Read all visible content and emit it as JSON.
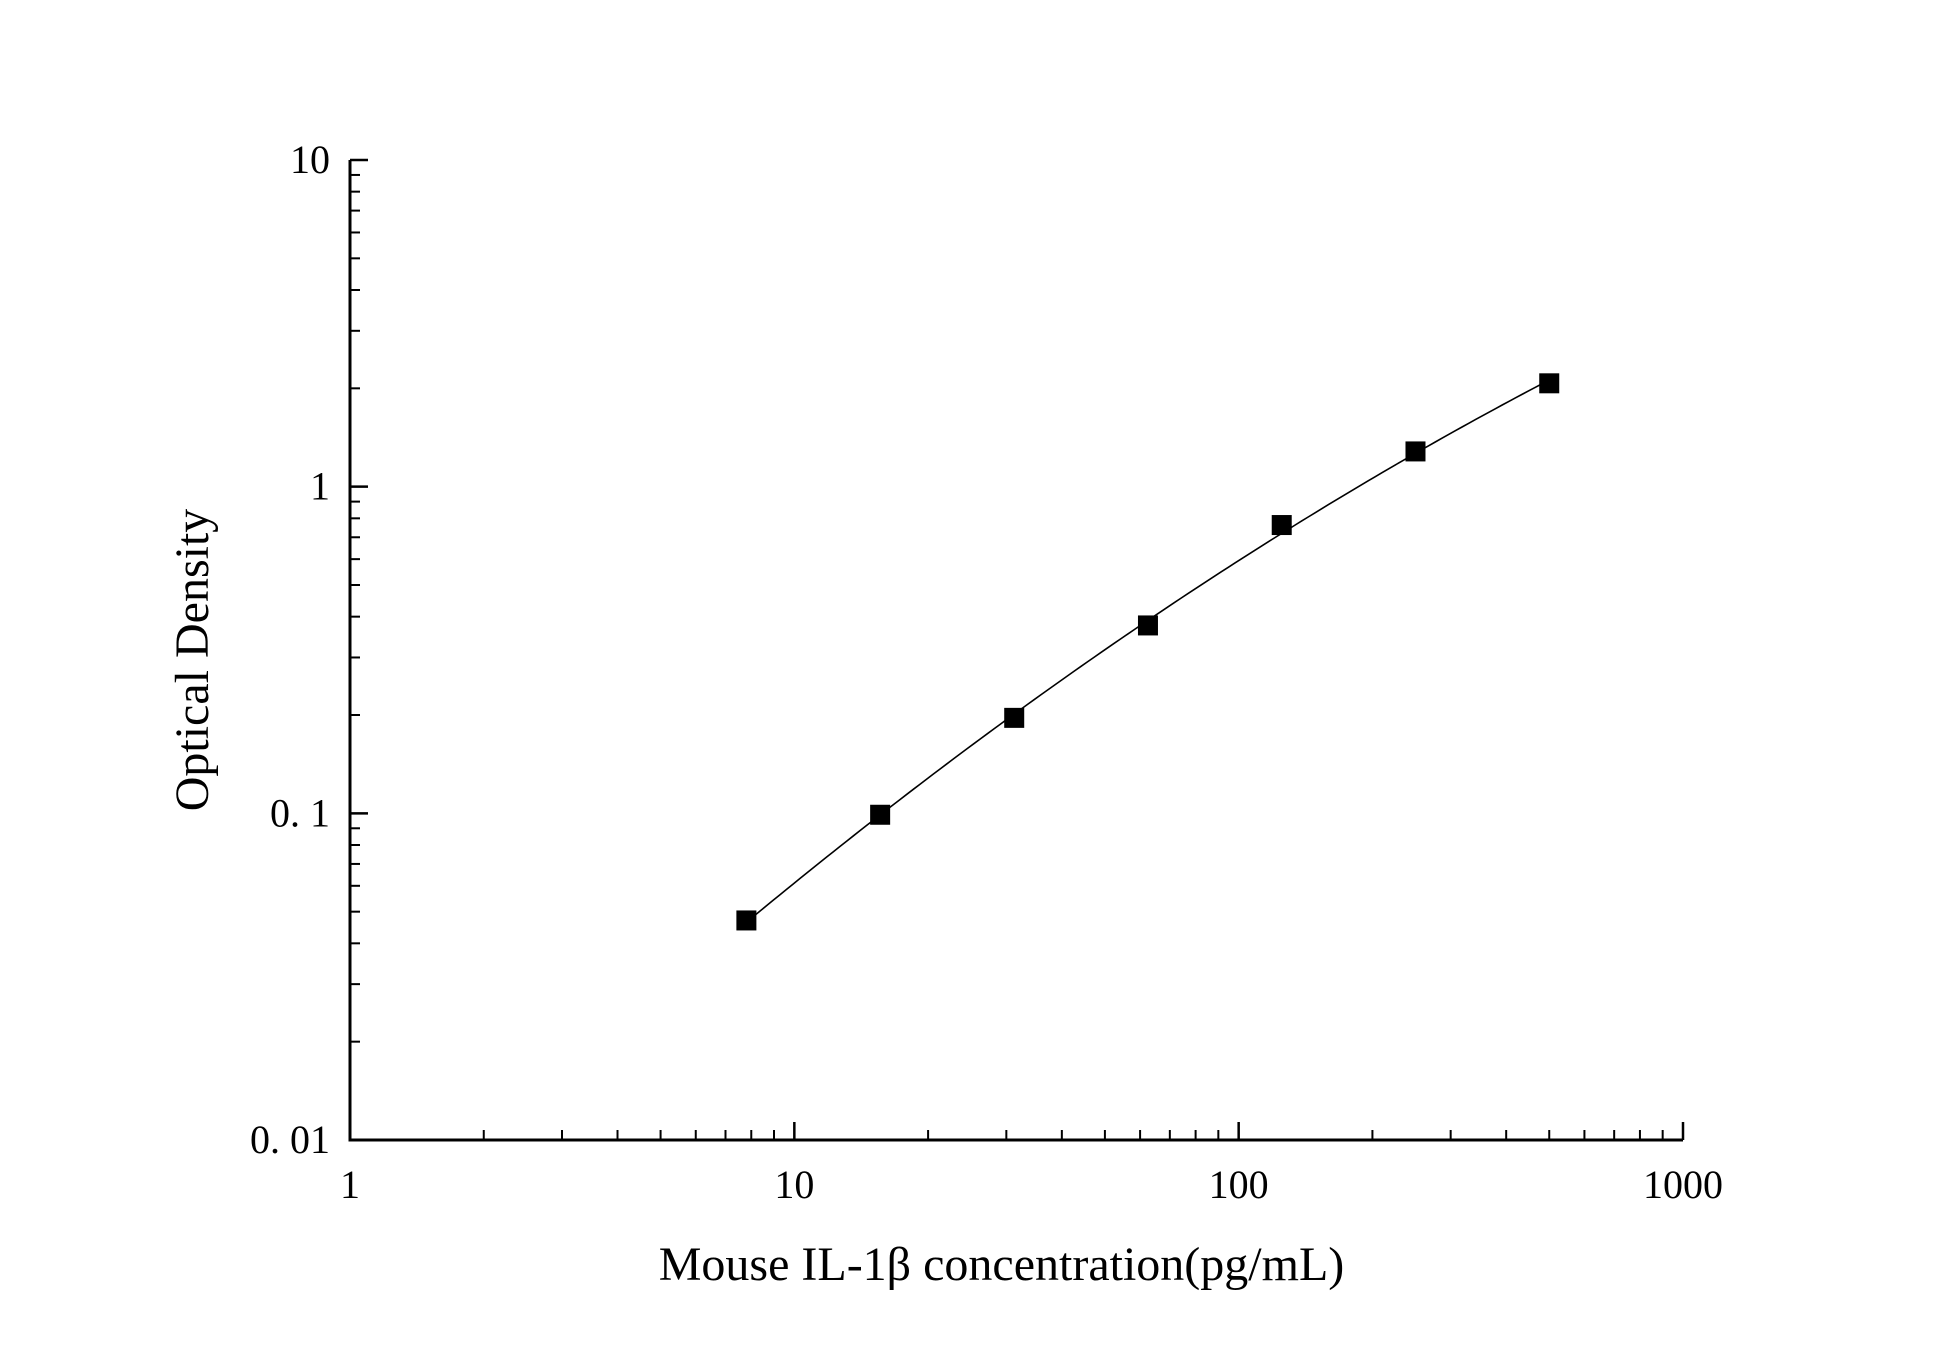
{
  "chart_data": {
    "type": "scatter",
    "xlabel": "Mouse IL-1β concentration(pg/mL)",
    "ylabel": "Optical Density",
    "x_scale": "log",
    "y_scale": "log",
    "xlim": [
      1,
      1000
    ],
    "ylim": [
      0.01,
      10
    ],
    "x_ticks": [
      {
        "value": 1,
        "label": "1"
      },
      {
        "value": 10,
        "label": "10"
      },
      {
        "value": 100,
        "label": "100"
      },
      {
        "value": 1000,
        "label": "1000"
      }
    ],
    "y_ticks": [
      {
        "value": 0.01,
        "label": "0. 01"
      },
      {
        "value": 0.1,
        "label": "0. 1"
      },
      {
        "value": 1,
        "label": "1"
      },
      {
        "value": 10,
        "label": "10"
      }
    ],
    "grid": false,
    "legend": "none",
    "marker": "square",
    "fit_line": true,
    "colors": {
      "marker": "#000000",
      "line": "#000000",
      "axis": "#000000"
    },
    "x": [
      7.8,
      15.6,
      31.25,
      62.5,
      125,
      250,
      500
    ],
    "y": [
      0.047,
      0.099,
      0.196,
      0.376,
      0.763,
      1.282,
      2.072
    ]
  }
}
